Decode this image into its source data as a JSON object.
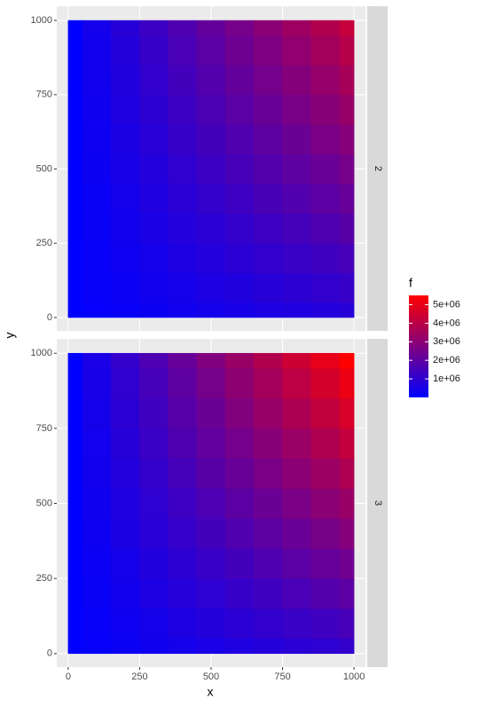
{
  "chart_data": {
    "type": "scatter",
    "xlabel": "x",
    "ylabel": "y",
    "x": [
      0,
      100,
      200,
      300,
      400,
      500,
      600,
      700,
      800,
      900,
      1000
    ],
    "y": [
      0,
      100,
      200,
      300,
      400,
      500,
      600,
      700,
      800,
      900,
      1000
    ],
    "xlim": [
      -40,
      1040
    ],
    "ylim": [
      -45,
      1048
    ],
    "xticks": [
      0,
      250,
      500,
      750,
      1000
    ],
    "yticks": [
      0,
      250,
      500,
      750,
      1000
    ],
    "grid": true,
    "color_low": "#0000ff",
    "color_high": "#ff0000",
    "colorlim": [
      0,
      5500000
    ],
    "legend": {
      "title": "f",
      "position": "right",
      "ticks": [
        {
          "value": 1000000,
          "label": "1e+06"
        },
        {
          "value": 2000000,
          "label": "2e+06"
        },
        {
          "value": 3000000,
          "label": "3e+06"
        },
        {
          "value": 4000000,
          "label": "4e+06"
        },
        {
          "value": 5000000,
          "label": "5e+06"
        }
      ]
    },
    "facets": [
      {
        "label": "2",
        "f": [
          [
            0,
            85000,
            170000,
            255000,
            340000,
            425000,
            510000,
            595000,
            680000,
            765000,
            850000
          ],
          [
            0,
            119000,
            238000,
            357000,
            476000,
            595000,
            714000,
            833000,
            952000,
            1071000,
            1190000
          ],
          [
            0,
            153000,
            306000,
            459000,
            612000,
            765000,
            918000,
            1071000,
            1224000,
            1377000,
            1530000
          ],
          [
            0,
            187000,
            374000,
            561000,
            748000,
            935000,
            1122000,
            1309000,
            1496000,
            1683000,
            1870000
          ],
          [
            0,
            221000,
            442000,
            663000,
            884000,
            1105000,
            1326000,
            1547000,
            1768000,
            1989000,
            2210000
          ],
          [
            0,
            255000,
            510000,
            765000,
            1020000,
            1275000,
            1530000,
            1785000,
            2040000,
            2295000,
            2550000
          ],
          [
            0,
            289000,
            578000,
            867000,
            1156000,
            1445000,
            1734000,
            2023000,
            2312000,
            2601000,
            2890000
          ],
          [
            0,
            323000,
            646000,
            969000,
            1292000,
            1615000,
            1938000,
            2261000,
            2584000,
            2907000,
            3230000
          ],
          [
            0,
            357000,
            714000,
            1071000,
            1428000,
            1785000,
            2142000,
            2499000,
            2856000,
            3213000,
            3570000
          ],
          [
            0,
            391000,
            782000,
            1173000,
            1564000,
            1955000,
            2346000,
            2737000,
            3128000,
            3519000,
            3910000
          ],
          [
            0,
            425000,
            850000,
            1275000,
            1700000,
            2125000,
            2550000,
            2975000,
            3400000,
            3825000,
            4250000
          ]
        ]
      },
      {
        "label": "3",
        "f": [
          [
            0,
            110000,
            220000,
            330000,
            440000,
            550000,
            660000,
            770000,
            880000,
            990000,
            1100000
          ],
          [
            0,
            154000,
            308000,
            462000,
            616000,
            770000,
            924000,
            1078000,
            1232000,
            1386000,
            1540000
          ],
          [
            0,
            198000,
            396000,
            594000,
            792000,
            990000,
            1188000,
            1386000,
            1584000,
            1782000,
            1980000
          ],
          [
            0,
            242000,
            484000,
            726000,
            968000,
            1210000,
            1452000,
            1694000,
            1936000,
            2178000,
            2420000
          ],
          [
            0,
            286000,
            572000,
            858000,
            1144000,
            1430000,
            1716000,
            2002000,
            2288000,
            2574000,
            2860000
          ],
          [
            0,
            330000,
            660000,
            990000,
            1320000,
            1650000,
            1980000,
            2310000,
            2640000,
            2970000,
            3300000
          ],
          [
            0,
            374000,
            748000,
            1122000,
            1496000,
            1870000,
            2244000,
            2618000,
            2992000,
            3366000,
            3740000
          ],
          [
            0,
            418000,
            836000,
            1254000,
            1672000,
            2090000,
            2508000,
            2926000,
            3344000,
            3762000,
            4180000
          ],
          [
            0,
            462000,
            924000,
            1386000,
            1848000,
            2310000,
            2772000,
            3234000,
            3696000,
            4158000,
            4620000
          ],
          [
            0,
            506000,
            1012000,
            1518000,
            2024000,
            2530000,
            3036000,
            3542000,
            4048000,
            4554000,
            5060000
          ],
          [
            0,
            550000,
            1100000,
            1650000,
            2200000,
            2750000,
            3300000,
            3850000,
            4400000,
            4950000,
            5500000
          ]
        ]
      }
    ]
  }
}
